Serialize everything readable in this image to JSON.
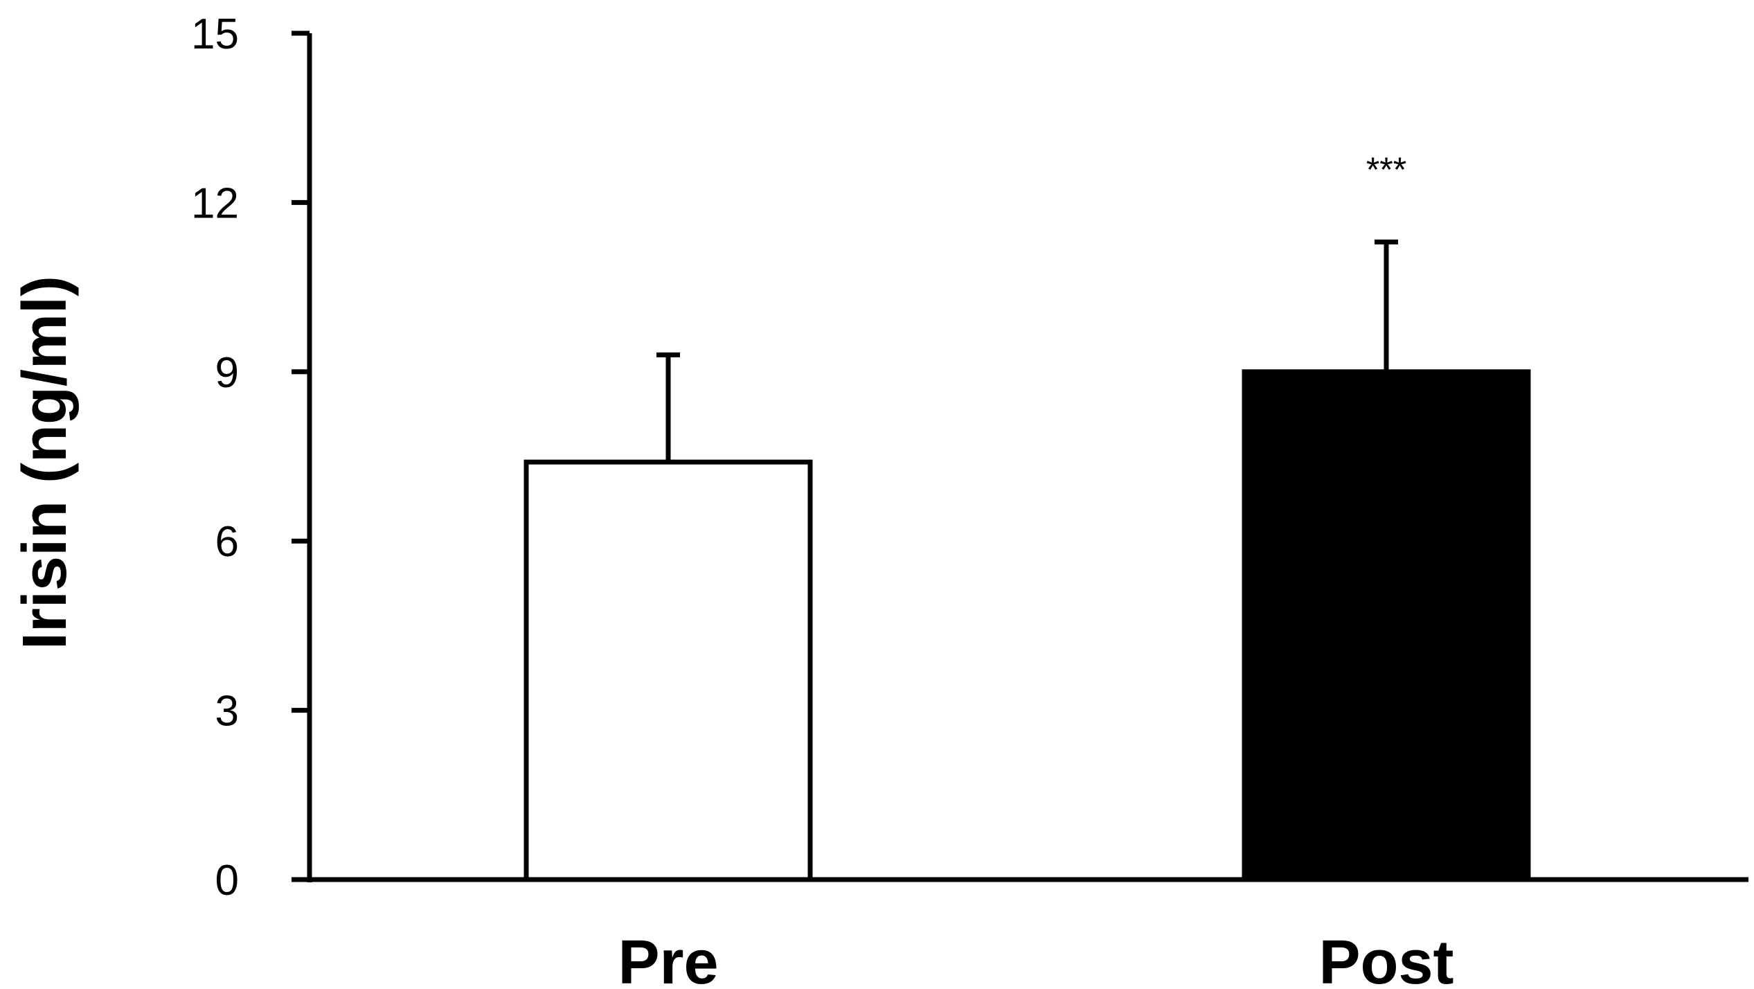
{
  "chart_data": {
    "type": "bar",
    "title": "",
    "xlabel": "",
    "ylabel": "Irisin (ng/ml)",
    "ylim": [
      0,
      15
    ],
    "yticks": [
      0,
      3,
      6,
      9,
      12,
      15
    ],
    "categories": [
      "Pre",
      "Post"
    ],
    "values": [
      7.4,
      9.0
    ],
    "error_upper": [
      9.3,
      11.3
    ],
    "bar_colors": [
      "#ffffff",
      "#000000"
    ],
    "annotations": [
      {
        "category": "Post",
        "text": "***"
      }
    ],
    "grid": false,
    "legend": "none"
  }
}
